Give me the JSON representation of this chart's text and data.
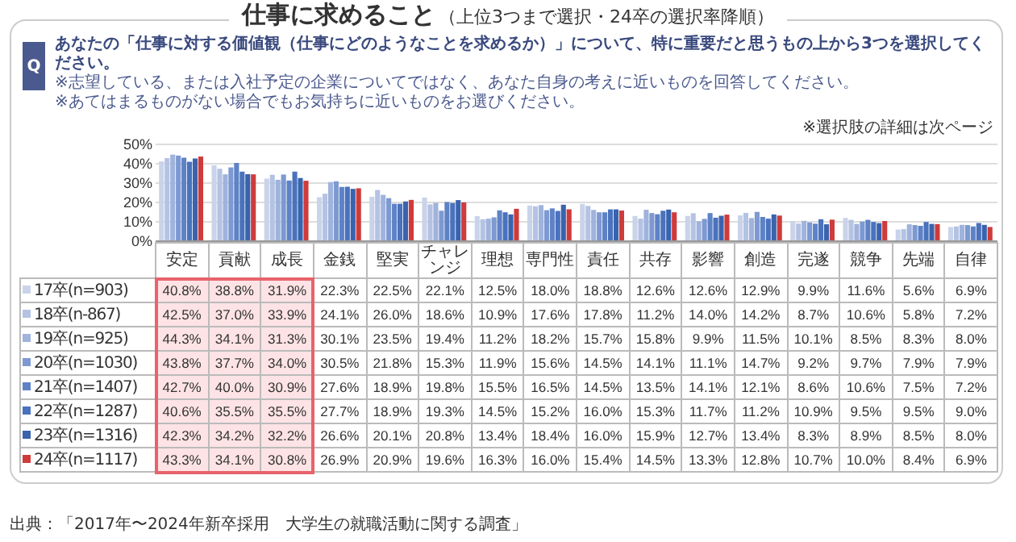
{
  "chart_data": {
    "type": "bar",
    "title": "仕事に求めること",
    "subtitle": "（上位3つまで選択・24卒の選択率降順）",
    "annotations": [
      "Q",
      "あなたの「仕事に対する価値観（仕事にどのようなことを求めるか）」について、特に重要だと思うもの上から3つを選択してください。",
      "※志望している、または入社予定の企業についてではなく、あなた自身の考えに近いものを回答してください。",
      "※あてはまるものがない場合でもお気持ちに近いものをお選びください。",
      "※選択肢の詳細は次ページ",
      "出典：「2017年〜2024年新卒採用　大学生の就職活動に関する調査」"
    ],
    "categories": [
      "安定",
      "貢献",
      "成長",
      "金銭",
      "堅実",
      "チャレンジ",
      "理想",
      "専門性",
      "責任",
      "共存",
      "影響",
      "創造",
      "完遂",
      "競争",
      "先端",
      "自律"
    ],
    "series": [
      {
        "name": "17卒(n=903)",
        "color": "#c9d3ea",
        "values": [
          40.8,
          38.8,
          31.9,
          22.3,
          22.5,
          22.1,
          12.5,
          18.0,
          18.8,
          12.6,
          12.6,
          12.9,
          9.9,
          11.6,
          5.6,
          6.9
        ],
        "value_labels": [
          "40.8%",
          "38.8%",
          "31.9%",
          "22.3%",
          "22.5%",
          "22.1%",
          "12.5%",
          "18.0%",
          "18.8%",
          "12.6%",
          "12.6%",
          "12.9%",
          "9.9%",
          "11.6%",
          "5.6%",
          "6.9%"
        ]
      },
      {
        "name": "18卒(n-867)",
        "color": "#b4c3e3",
        "values": [
          42.5,
          37.0,
          33.9,
          24.1,
          26.0,
          18.6,
          10.9,
          17.6,
          17.8,
          11.2,
          14.0,
          14.2,
          8.7,
          10.6,
          5.8,
          7.2
        ],
        "value_labels": [
          "42.5%",
          "37.0%",
          "33.9%",
          "24.1%",
          "26.0%",
          "18.6%",
          "10.9%",
          "17.6%",
          "17.8%",
          "11.2%",
          "14.0%",
          "14.2%",
          "8.7%",
          "10.6%",
          "5.8%",
          "7.2%"
        ]
      },
      {
        "name": "19卒(n=925)",
        "color": "#9fb3dc",
        "values": [
          44.3,
          34.1,
          31.3,
          30.1,
          23.5,
          19.4,
          11.2,
          18.2,
          15.7,
          15.8,
          9.9,
          11.5,
          10.1,
          8.5,
          8.3,
          8.0
        ],
        "value_labels": [
          "44.3%",
          "34.1%",
          "31.3%",
          "30.1%",
          "23.5%",
          "19.4%",
          "11.2%",
          "18.2%",
          "15.7%",
          "15.8%",
          "9.9%",
          "11.5%",
          "10.1%",
          "8.5%",
          "8.3%",
          "8.0%"
        ]
      },
      {
        "name": "20卒(n=1030)",
        "color": "#7d99d1",
        "values": [
          43.8,
          37.7,
          34.0,
          30.5,
          21.8,
          15.3,
          11.9,
          15.6,
          14.5,
          14.1,
          11.1,
          14.7,
          9.2,
          9.7,
          7.9,
          7.9
        ],
        "value_labels": [
          "43.8%",
          "37.7%",
          "34.0%",
          "30.5%",
          "21.8%",
          "15.3%",
          "11.9%",
          "15.6%",
          "14.5%",
          "14.1%",
          "11.1%",
          "14.7%",
          "9.2%",
          "9.7%",
          "7.9%",
          "7.9%"
        ]
      },
      {
        "name": "21卒(n=1407)",
        "color": "#5e82c6",
        "values": [
          42.7,
          40.0,
          30.9,
          27.6,
          18.9,
          19.8,
          15.5,
          16.5,
          14.5,
          13.5,
          14.1,
          12.1,
          8.6,
          10.6,
          7.5,
          7.2
        ],
        "value_labels": [
          "42.7%",
          "40.0%",
          "30.9%",
          "27.6%",
          "18.9%",
          "19.8%",
          "15.5%",
          "16.5%",
          "14.5%",
          "13.5%",
          "14.1%",
          "12.1%",
          "8.6%",
          "10.6%",
          "7.5%",
          "7.2%"
        ]
      },
      {
        "name": "22卒(n=1287)",
        "color": "#4a72bd",
        "values": [
          40.6,
          35.5,
          35.5,
          27.7,
          18.9,
          19.3,
          14.5,
          15.2,
          16.0,
          15.3,
          11.7,
          11.2,
          10.9,
          9.5,
          9.5,
          9.0
        ],
        "value_labels": [
          "40.6%",
          "35.5%",
          "35.5%",
          "27.7%",
          "18.9%",
          "19.3%",
          "14.5%",
          "15.2%",
          "16.0%",
          "15.3%",
          "11.7%",
          "11.2%",
          "10.9%",
          "9.5%",
          "9.5%",
          "9.0%"
        ]
      },
      {
        "name": "23卒(n=1316)",
        "color": "#3a63ad",
        "values": [
          42.3,
          34.2,
          32.2,
          26.6,
          20.1,
          20.8,
          13.4,
          18.4,
          16.0,
          15.9,
          12.7,
          13.4,
          8.3,
          8.9,
          8.5,
          8.0
        ],
        "value_labels": [
          "42.3%",
          "34.2%",
          "32.2%",
          "26.6%",
          "20.1%",
          "20.8%",
          "13.4%",
          "18.4%",
          "16.0%",
          "15.9%",
          "12.7%",
          "13.4%",
          "8.3%",
          "8.9%",
          "8.5%",
          "8.0%"
        ]
      },
      {
        "name": "24卒(n=1117)",
        "color": "#cf3b3b",
        "values": [
          43.3,
          34.1,
          30.8,
          26.9,
          20.9,
          19.6,
          16.3,
          16.0,
          15.4,
          14.5,
          13.3,
          12.8,
          10.7,
          10.0,
          8.4,
          6.9
        ],
        "value_labels": [
          "43.3%",
          "34.1%",
          "30.8%",
          "26.9%",
          "20.9%",
          "19.6%",
          "16.3%",
          "16.0%",
          "15.4%",
          "14.5%",
          "13.3%",
          "12.8%",
          "10.7%",
          "10.0%",
          "8.4%",
          "6.9%"
        ]
      }
    ],
    "ylim": [
      0,
      50
    ],
    "yticks": [
      {
        "value": 0,
        "label": "0%"
      },
      {
        "value": 10,
        "label": "10%"
      },
      {
        "value": 20,
        "label": "20%"
      },
      {
        "value": 30,
        "label": "30%"
      },
      {
        "value": 40,
        "label": "40%"
      },
      {
        "value": 50,
        "label": "50%"
      }
    ],
    "grid": "y",
    "legend": "bottom"
  }
}
